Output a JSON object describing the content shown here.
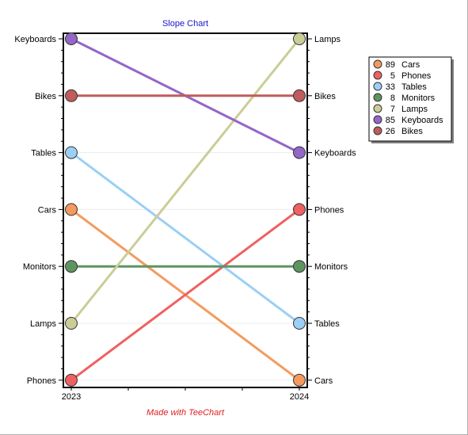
{
  "chart_data": {
    "type": "slope",
    "title": "Slope Chart",
    "footer": "Made with TeeChart",
    "x_labels": [
      "2023",
      "2024"
    ],
    "left_order_top_to_bottom": [
      "Keyboards",
      "Bikes",
      "Tables",
      "Cars",
      "Monitors",
      "Lamps",
      "Phones"
    ],
    "right_order_top_to_bottom": [
      "Lamps",
      "Bikes",
      "Keyboards",
      "Phones",
      "Monitors",
      "Tables",
      "Cars"
    ],
    "series": [
      {
        "name": "Cars",
        "legend_value": "89",
        "color": "#f59a5e",
        "start_rank": 3,
        "end_rank": 6
      },
      {
        "name": "Phones",
        "legend_value": "5",
        "color": "#f06060",
        "start_rank": 6,
        "end_rank": 3
      },
      {
        "name": "Tables",
        "legend_value": "33",
        "color": "#9ccff5",
        "start_rank": 2,
        "end_rank": 5
      },
      {
        "name": "Monitors",
        "legend_value": "8",
        "color": "#5e9460",
        "start_rank": 4,
        "end_rank": 4
      },
      {
        "name": "Lamps",
        "legend_value": "7",
        "color": "#cbcd97",
        "start_rank": 5,
        "end_rank": 0
      },
      {
        "name": "Keyboards",
        "legend_value": "85",
        "color": "#9466c8",
        "start_rank": 0,
        "end_rank": 2
      },
      {
        "name": "Bikes",
        "legend_value": "26",
        "color": "#c05c5c",
        "start_rank": 1,
        "end_rank": 1
      }
    ],
    "grid": true,
    "legend_position": "right"
  }
}
